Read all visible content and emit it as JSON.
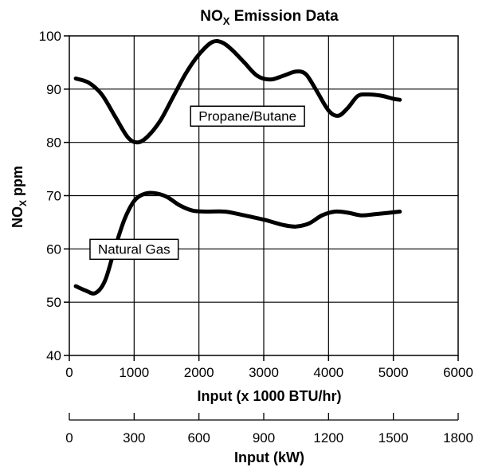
{
  "chart_data": {
    "type": "line",
    "title": "NOx Emission Data",
    "title_parts": {
      "base": "NO",
      "sub": "X",
      "rest": " Emission Data"
    },
    "xlabel": "Input (x 1000 BTU/hr)",
    "ylabel": "NOx ppm",
    "ylabel_parts": {
      "base": "NO",
      "sub": "X",
      "rest": " ppm"
    },
    "xlim": [
      0,
      6000
    ],
    "ylim": [
      40,
      100
    ],
    "x_ticks": [
      0,
      1000,
      2000,
      3000,
      4000,
      5000,
      6000
    ],
    "y_ticks": [
      40,
      50,
      60,
      70,
      80,
      90,
      100
    ],
    "grid": true,
    "secondary_axis": {
      "label": "Input (kW)",
      "lim": [
        0,
        1800
      ],
      "ticks": [
        0,
        300,
        600,
        900,
        1200,
        1500,
        1800
      ]
    },
    "series": [
      {
        "name": "Propane/Butane",
        "color": "#000000",
        "points": [
          [
            100,
            92
          ],
          [
            300,
            91.2
          ],
          [
            500,
            89
          ],
          [
            700,
            85
          ],
          [
            900,
            81
          ],
          [
            1050,
            80
          ],
          [
            1200,
            81
          ],
          [
            1400,
            84
          ],
          [
            1600,
            88.5
          ],
          [
            1800,
            93
          ],
          [
            2000,
            96.5
          ],
          [
            2200,
            98.8
          ],
          [
            2350,
            98.8
          ],
          [
            2500,
            97.5
          ],
          [
            2700,
            95
          ],
          [
            2900,
            92.5
          ],
          [
            3100,
            91.8
          ],
          [
            3300,
            92.5
          ],
          [
            3500,
            93.3
          ],
          [
            3650,
            92.8
          ],
          [
            3800,
            90
          ],
          [
            4000,
            86
          ],
          [
            4150,
            85
          ],
          [
            4300,
            86.5
          ],
          [
            4450,
            88.7
          ],
          [
            4600,
            89
          ],
          [
            4800,
            88.8
          ],
          [
            5000,
            88.2
          ],
          [
            5100,
            88
          ]
        ],
        "label_x": 2750,
        "label_y": 85
      },
      {
        "name": "Natural Gas",
        "color": "#000000",
        "points": [
          [
            100,
            53
          ],
          [
            250,
            52.2
          ],
          [
            400,
            51.7
          ],
          [
            550,
            54
          ],
          [
            700,
            60
          ],
          [
            850,
            65.5
          ],
          [
            1000,
            69
          ],
          [
            1150,
            70.3
          ],
          [
            1300,
            70.5
          ],
          [
            1500,
            69.8
          ],
          [
            1700,
            68.2
          ],
          [
            1900,
            67.2
          ],
          [
            2100,
            67
          ],
          [
            2400,
            67
          ],
          [
            2700,
            66.3
          ],
          [
            3000,
            65.5
          ],
          [
            3300,
            64.5
          ],
          [
            3500,
            64.2
          ],
          [
            3700,
            64.8
          ],
          [
            3900,
            66.3
          ],
          [
            4100,
            67
          ],
          [
            4300,
            66.8
          ],
          [
            4500,
            66.3
          ],
          [
            4700,
            66.5
          ],
          [
            5100,
            67
          ]
        ],
        "label_x": 1000,
        "label_y": 60
      }
    ]
  }
}
